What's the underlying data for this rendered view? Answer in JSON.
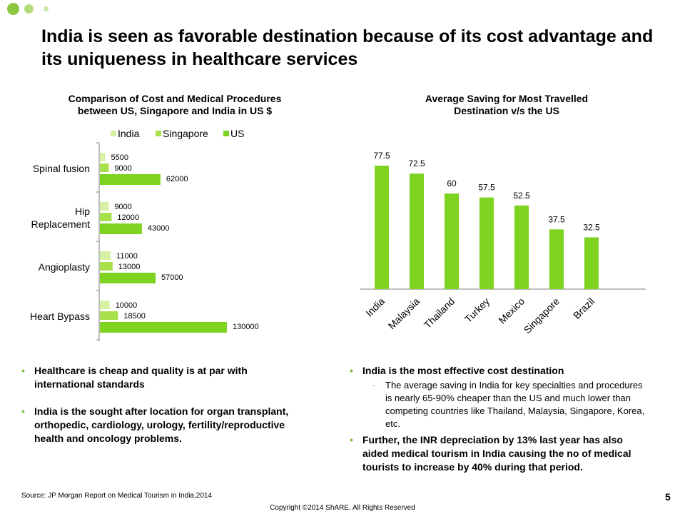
{
  "colors": {
    "india": "#d6f0a6",
    "singapore": "#a8e04a",
    "us": "#7ed321",
    "accent": "#8cc63f",
    "axis": "#7f7f7f"
  },
  "slide": {
    "title": "India is seen as favorable destination because of its cost advantage and its uniqueness in healthcare services",
    "source": "Source: JP Morgan Report on Medical Tourism in India,2014",
    "copyright": "Copyright ©2014 ShARE. All Rights Reserved",
    "page_number": "5"
  },
  "left_chart": {
    "title_line1": "Comparison of Cost and Medical Procedures",
    "title_line2": "between US, Singapore and India in US $",
    "legend": [
      "India",
      "Singapore",
      "US"
    ]
  },
  "right_chart": {
    "title_line1": "Average Saving for Most Travelled",
    "title_line2": "Destination v/s the US"
  },
  "left_bullets": {
    "b1": "Healthcare is cheap and quality is at par with international standards",
    "b2": " India is the sought after location for organ transplant, orthopedic, cardiology, urology, fertility/reproductive health and oncology problems."
  },
  "right_bullets": {
    "b1": "India is the most effective cost destination",
    "sub1": "The average saving in India for key specialties and procedures is nearly 65-90% cheaper than the US and much lower than competing countries like Thailand, Malaysia, Singapore, Korea, etc.",
    "b2": "Further, the INR depreciation by 13% last year has also aided medical tourism in India causing the no of medical tourists to increase by 40% during that period."
  },
  "chart_data": [
    {
      "type": "bar",
      "orientation": "horizontal",
      "title": "Comparison of Cost and Medical Procedures between US, Singapore and India in US $",
      "categories": [
        "Spinal fusion",
        "Hip Replacement",
        "Angioplasty",
        "Heart Bypass"
      ],
      "category_labels": [
        [
          "Spinal fusion"
        ],
        [
          "Hip",
          "Replacement"
        ],
        [
          "Angioplasty"
        ],
        [
          "Heart Bypass"
        ]
      ],
      "series": [
        {
          "name": "India",
          "values": [
            5500,
            9000,
            11000,
            10000
          ]
        },
        {
          "name": "Singapore",
          "values": [
            9000,
            12000,
            13000,
            18500
          ]
        },
        {
          "name": "US",
          "values": [
            62000,
            43000,
            57000,
            130000
          ]
        }
      ],
      "xlim": [
        0,
        140000
      ],
      "legend": "top",
      "grid": false
    },
    {
      "type": "bar",
      "orientation": "vertical",
      "title": "Average Saving for Most Travelled Destination v/s the US",
      "categories": [
        "India",
        "Malaysia",
        "Thailand",
        "Turkey",
        "Mexico",
        "Singapore",
        "Brazil"
      ],
      "values": [
        77.5,
        72.5,
        60,
        57.5,
        52.5,
        37.5,
        32.5
      ],
      "ylim": [
        0,
        90
      ],
      "legend": "none",
      "grid": false
    }
  ]
}
